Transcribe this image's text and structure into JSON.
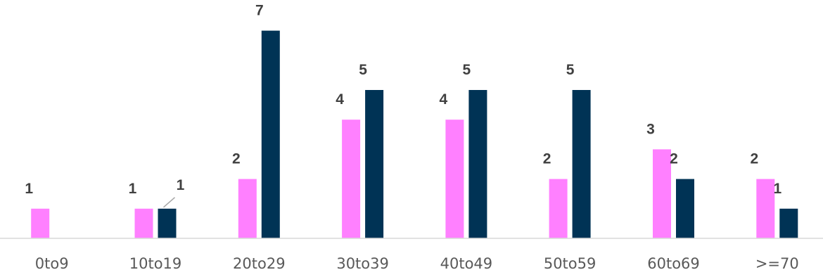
{
  "chart_data": {
    "type": "bar",
    "categories": [
      "0to9",
      "10to19",
      "20to29",
      "30to39",
      "40to49",
      "50to59",
      "60to69",
      ">=70"
    ],
    "series": [
      {
        "values": [
          1,
          1,
          2,
          4,
          4,
          2,
          3,
          2
        ],
        "color": "#FF80FF"
      },
      {
        "values": [
          null,
          1,
          7,
          5,
          5,
          5,
          2,
          1
        ],
        "color": "#003355"
      }
    ],
    "title": "",
    "xlabel": "",
    "ylabel": "",
    "ylim": [
      0,
      7.5
    ],
    "grid": false,
    "legend": "none",
    "data_labels": true,
    "axis_color": "#d9d9d9"
  }
}
